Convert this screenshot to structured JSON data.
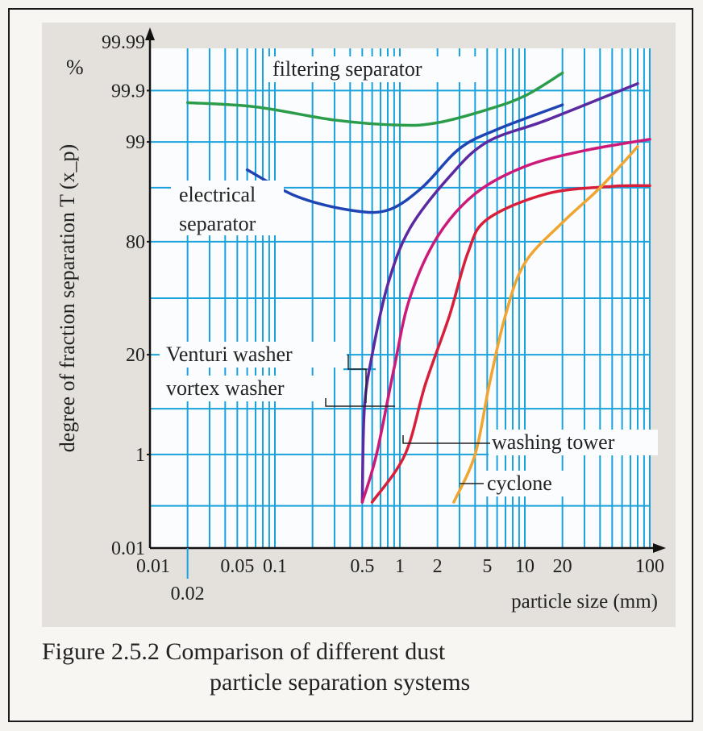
{
  "caption": {
    "line1": "Figure 2.5.2 Comparison of different dust",
    "line2": "particle separation systems"
  },
  "colors": {
    "plot_bg": "#fbfcfd",
    "grid": "#1aa2dd",
    "filtering": "#2a9c4a",
    "electrical": "#1f45b5",
    "venturi": "#5b2aa0",
    "vortex": "#cc1a7a",
    "washing_tower": "#d81f3a",
    "cyclone": "#f0a530"
  },
  "chart_data": {
    "type": "line",
    "title": "",
    "xlabel": "particle size (mm)",
    "ylabel": "degree of fraction separation T (x_p)",
    "y_unit": "%",
    "x_scale": "log",
    "y_scale": "probability",
    "xlim": [
      0.01,
      100
    ],
    "ylim": [
      0.01,
      99.99
    ],
    "x_tick_labels": [
      "0.01",
      "0.02",
      "0.05",
      "0.1",
      "0.5",
      "1",
      "2",
      "5",
      "10",
      "20",
      "100"
    ],
    "x_ticks": [
      0.01,
      0.02,
      0.05,
      0.1,
      0.5,
      1,
      2,
      5,
      10,
      20,
      100
    ],
    "y_tick_labels": [
      "0.01",
      "1",
      "20",
      "80",
      "99",
      "99.9",
      "99.99"
    ],
    "y_ticks": [
      0.01,
      1,
      20,
      80,
      99,
      99.9,
      99.99
    ],
    "grid": true,
    "annotations": {
      "filtering": "filtering separator",
      "electrical_1": "electrical",
      "electrical_2": "separator",
      "venturi": "Venturi washer",
      "vortex": "vortex washer",
      "washing_tower": "washing tower",
      "cyclone": "cyclone"
    },
    "series": [
      {
        "key": "filtering",
        "points": [
          [
            0.02,
            99.82
          ],
          [
            0.07,
            99.78
          ],
          [
            0.3,
            99.6
          ],
          [
            1,
            99.5
          ],
          [
            2,
            99.55
          ],
          [
            5,
            99.75
          ],
          [
            10,
            99.87
          ],
          [
            20,
            99.96
          ]
        ]
      },
      {
        "key": "electrical",
        "points": [
          [
            0.06,
            97.2
          ],
          [
            0.15,
            93.5
          ],
          [
            0.4,
            90.5
          ],
          [
            0.8,
            90.5
          ],
          [
            1.5,
            95
          ],
          [
            3,
            98.7
          ],
          [
            6,
            99.4
          ],
          [
            20,
            99.8
          ]
        ]
      },
      {
        "key": "venturi",
        "points": [
          [
            0.5,
            0.12
          ],
          [
            0.52,
            5
          ],
          [
            0.6,
            20
          ],
          [
            0.8,
            58
          ],
          [
            1.2,
            85
          ],
          [
            2.5,
            96.5
          ],
          [
            5,
            99
          ],
          [
            15,
            99.6
          ],
          [
            80,
            99.93
          ]
        ]
      },
      {
        "key": "vortex",
        "points": [
          [
            0.5,
            0.12
          ],
          [
            0.65,
            1
          ],
          [
            0.9,
            15
          ],
          [
            1.2,
            50
          ],
          [
            2,
            82
          ],
          [
            4,
            94
          ],
          [
            10,
            97.5
          ],
          [
            30,
            98.6
          ],
          [
            100,
            99.1
          ]
        ]
      },
      {
        "key": "washing_tower",
        "points": [
          [
            0.6,
            0.12
          ],
          [
            1.1,
            1
          ],
          [
            1.6,
            10
          ],
          [
            2.5,
            40
          ],
          [
            3.5,
            75
          ],
          [
            5,
            88
          ],
          [
            15,
            94
          ],
          [
            50,
            95.2
          ],
          [
            100,
            95.3
          ]
        ]
      },
      {
        "key": "cyclone",
        "points": [
          [
            2.7,
            0.12
          ],
          [
            4,
            1
          ],
          [
            5.2,
            10
          ],
          [
            7,
            40
          ],
          [
            10,
            70
          ],
          [
            20,
            87
          ],
          [
            40,
            95
          ],
          [
            80,
            98.8
          ]
        ]
      }
    ]
  }
}
